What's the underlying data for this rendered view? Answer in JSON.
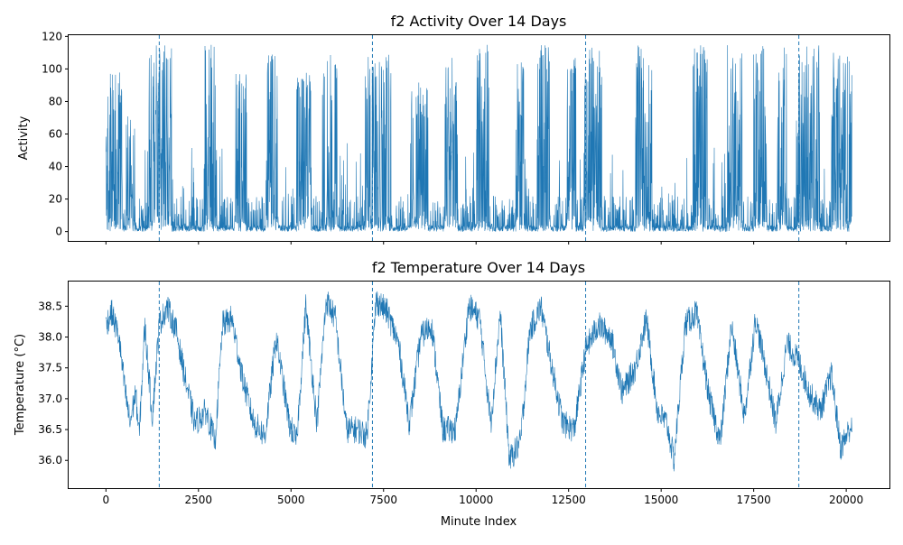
{
  "chart_data": [
    {
      "type": "line",
      "title": "f2 Activity Over 14 Days",
      "xlabel": "",
      "ylabel": "Activity",
      "xlim": [
        -1008,
        21168
      ],
      "ylim": [
        -5.75,
        120.75
      ],
      "x_ticks": [
        0,
        2500,
        5000,
        7500,
        10000,
        12500,
        15000,
        17500,
        20000
      ],
      "x_tick_labels_shown": false,
      "y_ticks": [
        0,
        20,
        40,
        60,
        80,
        100,
        120
      ],
      "vlines": [
        1440,
        7200,
        12960,
        18720
      ],
      "grid": false,
      "color": "#1f77b4",
      "series": [
        {
          "x_start": 0,
          "x_end": 20159,
          "high_activity_blocks": [
            [
              0,
              450,
              98
            ],
            [
              550,
              780,
              72
            ],
            [
              1160,
              1800,
              115
            ],
            [
              2650,
              3000,
              115
            ],
            [
              3480,
              3800,
              97
            ],
            [
              4320,
              4660,
              110
            ],
            [
              5150,
              5550,
              100
            ],
            [
              5850,
              6250,
              110
            ],
            [
              7000,
              7700,
              110
            ],
            [
              8250,
              8700,
              92
            ],
            [
              9150,
              9500,
              107
            ],
            [
              10000,
              10350,
              115
            ],
            [
              11050,
              11300,
              105
            ],
            [
              11650,
              12000,
              115
            ],
            [
              12450,
              12700,
              107
            ],
            [
              12900,
              13400,
              115
            ],
            [
              14300,
              14750,
              115
            ],
            [
              15850,
              16250,
              115
            ],
            [
              16750,
              17200,
              115
            ],
            [
              17500,
              17850,
              115
            ],
            [
              18150,
              18400,
              115
            ],
            [
              18650,
              19300,
              115
            ],
            [
              19600,
              20159,
              111
            ]
          ]
        }
      ]
    },
    {
      "type": "line",
      "title": "f2 Temperature Over 14 Days",
      "xlabel": "Minute Index",
      "ylabel": "Temperature (°C)",
      "xlim": [
        -1008,
        21168
      ],
      "ylim": [
        35.55,
        38.9
      ],
      "x_ticks": [
        0,
        2500,
        5000,
        7500,
        10000,
        12500,
        15000,
        17500,
        20000
      ],
      "y_ticks": [
        36.0,
        36.5,
        37.0,
        37.5,
        38.0,
        38.5
      ],
      "y_tick_labels": [
        "36.0",
        "36.5",
        "37.0",
        "37.5",
        "38.0",
        "38.5"
      ],
      "vlines": [
        1440,
        7200,
        12960,
        18720
      ],
      "grid": false,
      "color": "#1f77b4",
      "series": [
        {
          "key_points": [
            [
              0,
              38.2
            ],
            [
              150,
              38.4
            ],
            [
              350,
              38.0
            ],
            [
              500,
              37.2
            ],
            [
              650,
              36.6
            ],
            [
              800,
              37.1
            ],
            [
              900,
              36.4
            ],
            [
              1050,
              38.2
            ],
            [
              1250,
              36.7
            ],
            [
              1440,
              38.2
            ],
            [
              1650,
              38.5
            ],
            [
              1900,
              38.1
            ],
            [
              2150,
              37.3
            ],
            [
              2400,
              36.6
            ],
            [
              2700,
              36.8
            ],
            [
              2950,
              36.3
            ],
            [
              3150,
              38.2
            ],
            [
              3400,
              38.3
            ],
            [
              3700,
              37.3
            ],
            [
              4000,
              36.6
            ],
            [
              4300,
              36.4
            ],
            [
              4600,
              38.0
            ],
            [
              4950,
              36.6
            ],
            [
              5150,
              36.3
            ],
            [
              5400,
              38.5
            ],
            [
              5700,
              36.6
            ],
            [
              5950,
              38.6
            ],
            [
              6200,
              38.3
            ],
            [
              6500,
              36.5
            ],
            [
              6800,
              36.5
            ],
            [
              7050,
              36.4
            ],
            [
              7300,
              38.6
            ],
            [
              7600,
              38.4
            ],
            [
              7900,
              37.9
            ],
            [
              8200,
              36.6
            ],
            [
              8500,
              38.0
            ],
            [
              8800,
              38.2
            ],
            [
              9100,
              36.5
            ],
            [
              9450,
              36.5
            ],
            [
              9800,
              38.5
            ],
            [
              10100,
              38.3
            ],
            [
              10400,
              36.6
            ],
            [
              10650,
              38.4
            ],
            [
              10900,
              36.0
            ],
            [
              11200,
              36.3
            ],
            [
              11450,
              38.1
            ],
            [
              11750,
              38.5
            ],
            [
              12050,
              37.5
            ],
            [
              12350,
              36.6
            ],
            [
              12650,
              36.5
            ],
            [
              12960,
              37.8
            ],
            [
              13300,
              38.2
            ],
            [
              13650,
              38.0
            ],
            [
              13950,
              37.1
            ],
            [
              14300,
              37.5
            ],
            [
              14600,
              38.3
            ],
            [
              14900,
              36.8
            ],
            [
              15150,
              36.6
            ],
            [
              15350,
              36.0
            ],
            [
              15650,
              38.2
            ],
            [
              15950,
              38.4
            ],
            [
              16300,
              37.0
            ],
            [
              16600,
              36.3
            ],
            [
              16900,
              38.2
            ],
            [
              17250,
              36.7
            ],
            [
              17550,
              38.3
            ],
            [
              17850,
              37.4
            ],
            [
              18100,
              36.6
            ],
            [
              18400,
              37.9
            ],
            [
              18720,
              37.6
            ],
            [
              19000,
              37.1
            ],
            [
              19300,
              36.8
            ],
            [
              19600,
              37.4
            ],
            [
              19850,
              36.2
            ],
            [
              20159,
              36.6
            ]
          ],
          "y_min": 35.75,
          "y_max": 38.74
        }
      ]
    }
  ]
}
